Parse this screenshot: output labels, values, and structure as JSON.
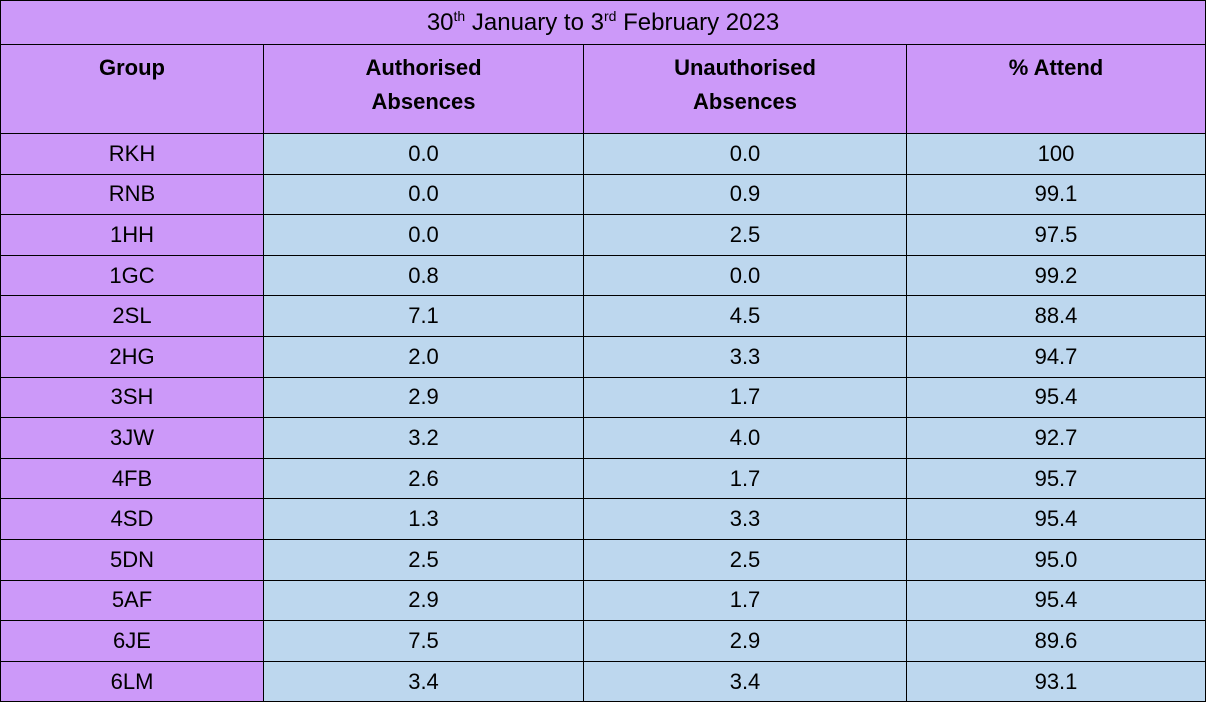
{
  "title": {
    "parts": [
      "30",
      "th",
      "January to 3",
      "rd",
      "February 2023"
    ]
  },
  "table": {
    "headers": [
      "Group",
      "Authorised\nAbsences",
      "Unauthorised\nAbsences",
      "% Attend"
    ],
    "rows": [
      [
        "RKH",
        "0.0",
        "0.0",
        "100"
      ],
      [
        "RNB",
        "0.0",
        "0.9",
        "99.1"
      ],
      [
        "1HH",
        "0.0",
        "2.5",
        "97.5"
      ],
      [
        "1GC",
        "0.8",
        "0.0",
        "99.2"
      ],
      [
        "2SL",
        "7.1",
        "4.5",
        "88.4"
      ],
      [
        "2HG",
        "2.0",
        "3.3",
        "94.7"
      ],
      [
        "3SH",
        "2.9",
        "1.7",
        "95.4"
      ],
      [
        "3JW",
        "3.2",
        "4.0",
        "92.7"
      ],
      [
        "4FB",
        "2.6",
        "1.7",
        "95.7"
      ],
      [
        "4SD",
        "1.3",
        "3.3",
        "95.4"
      ],
      [
        "5DN",
        "2.5",
        "2.5",
        "95.0"
      ],
      [
        "5AF",
        "2.9",
        "1.7",
        "95.4"
      ],
      [
        "6JE",
        "7.5",
        "2.9",
        "89.6"
      ],
      [
        "6LM",
        "3.4",
        "3.4",
        "93.1"
      ]
    ]
  }
}
